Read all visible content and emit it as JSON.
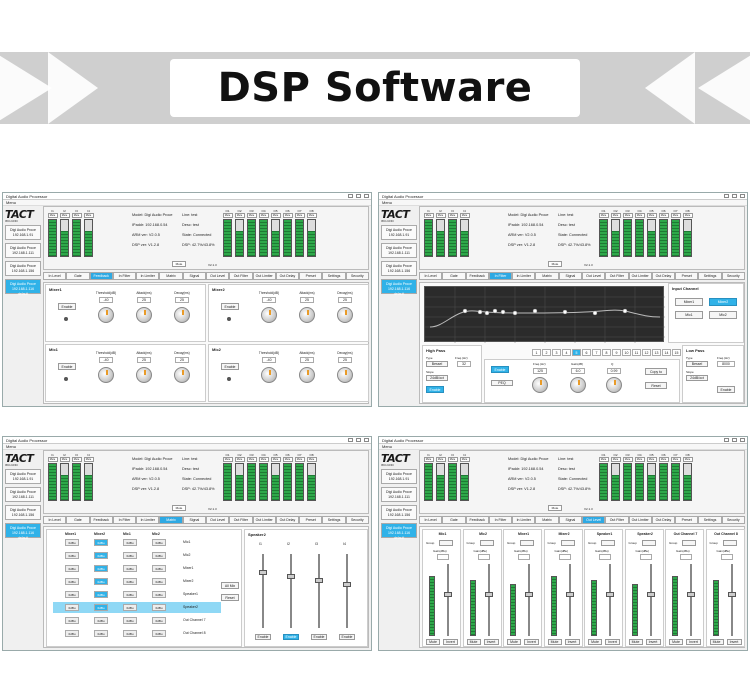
{
  "banner": {
    "title": "DSP Software"
  },
  "colors": {
    "accent": "#30b2e8",
    "meter_green": "#2ea84a",
    "banner_bg": "#cfcfcf"
  },
  "window": {
    "title": "Digital Audio Processor",
    "menu": "Menu",
    "logo": "TACT",
    "logo_sub": "PRO AUDIO",
    "devices": [
      {
        "name": "Digi Audio Proce",
        "ip": "192.168.1.91"
      },
      {
        "name": "Digi Audio Proce",
        "ip": "192.168.1.111"
      },
      {
        "name": "Digi Audio Proce",
        "ip": "192.168.1.156"
      },
      {
        "name": "Digi Audio Proce",
        "ip": "192.168.1.116",
        "extra": "default"
      }
    ],
    "inputs": [
      "I1",
      "I2",
      "I3",
      "I4"
    ],
    "outputs": [
      "O1",
      "O2",
      "O3",
      "O4",
      "O5",
      "O6",
      "O7",
      "O8"
    ],
    "mute_label": "Mute",
    "info": {
      "model": "Model: Digi Audio Proce",
      "ip": "IPaddr: 192.168.0.54",
      "arm": "ARM ver: V2.0.5",
      "dsp": "DSP ver: V1.2.8",
      "line": "Line: test",
      "desc": "Desc: test",
      "state": "State: Connected",
      "dsp_usage": "DSP: 42.7%/43.8%",
      "version": "V2.1.3"
    },
    "tabs": [
      "In Level",
      "Gate",
      "Feedback",
      "In Filter",
      "In Limiter",
      "Matrix",
      "Signal",
      "Out Level",
      "Out Filter",
      "Out Limiter",
      "Out Delay",
      "Preset",
      "Settings",
      "Security"
    ]
  },
  "screen_tl": {
    "active_tab": "Feedback",
    "panels": [
      {
        "name": "Mixer1",
        "enable": "Enable",
        "knobs": [
          {
            "label": "Threshold(dB)",
            "value": "-40"
          },
          {
            "label": "Attack(ms)",
            "value": "25"
          },
          {
            "label": "Decay(ms)",
            "value": "25"
          }
        ]
      },
      {
        "name": "Mixer2",
        "enable": "Enable",
        "knobs": [
          {
            "label": "Threshold(dB)",
            "value": "-40"
          },
          {
            "label": "Attack(ms)",
            "value": "25"
          },
          {
            "label": "Decay(ms)",
            "value": "25"
          }
        ]
      },
      {
        "name": "Mic1",
        "enable": "Enable",
        "knobs": [
          {
            "label": "Threshold(dB)",
            "value": "-40"
          },
          {
            "label": "Attack(ms)",
            "value": "25"
          },
          {
            "label": "Decay(ms)",
            "value": "25"
          }
        ]
      },
      {
        "name": "Mic2",
        "enable": "Enable",
        "knobs": [
          {
            "label": "Threshold(dB)",
            "value": "-40"
          },
          {
            "label": "Attack(ms)",
            "value": "25"
          },
          {
            "label": "Decay(ms)",
            "value": "25"
          }
        ]
      }
    ]
  },
  "screen_tr": {
    "active_tab": "In Filter",
    "input_channel": "Input Channel",
    "channels": [
      "Mixer1",
      "Mixer2",
      "Mic1",
      "Mic2"
    ],
    "high_pass": {
      "title": "High Pass",
      "type": "Type",
      "type_val": "Bessel",
      "slope": "Slope",
      "slope_val": "24dB/oct",
      "freq_label": "Freq.(Hz)",
      "freq": "32",
      "enable": "Enable"
    },
    "low_pass": {
      "title": "Low Pass",
      "type": "Type",
      "type_val": "Bessel",
      "slope": "Slope",
      "slope_val": "24dB/oct",
      "freq_label": "Freq.(Hz)",
      "freq": "8000",
      "enable": "Enable"
    },
    "bands": [
      "1",
      "2",
      "3",
      "4",
      "5",
      "6",
      "7",
      "8",
      "9",
      "10",
      "11",
      "12",
      "13",
      "14",
      "15",
      "16"
    ],
    "active_band": "5",
    "peq": {
      "label": "PEQ",
      "enable": "Enable",
      "freq_label": "Freq.(Hz)",
      "freq": "125",
      "gain_label": "Gain(dB)",
      "gain": "6.0",
      "q_label": "Q",
      "q": "0.99",
      "copy": "Copy to",
      "reset": "Reset"
    }
  },
  "screen_bl": {
    "active_tab": "Matrix",
    "sources": [
      "Mixer1",
      "Mixer2",
      "Mic1",
      "Mic2"
    ],
    "dests": [
      "Mic1",
      "Mic2",
      "Mixer1",
      "Mixer2",
      "Speaker1",
      "Speaker2",
      "Out Channel 7",
      "Out Channel 8"
    ],
    "cell_label": "0dBu",
    "all_mix": "All Mix",
    "reset": "Reset",
    "speaker": "Speaker2",
    "speaker_ch": [
      "I1",
      "I2",
      "I3",
      "I4"
    ],
    "enable": "Enable"
  },
  "screen_br": {
    "active_tab": "Out Level",
    "channels": [
      "Mic1",
      "Mic2",
      "Mixer1",
      "Mixer2",
      "Speaker1",
      "Speaker2",
      "Out Channel 7",
      "Out Channel 8"
    ],
    "group": "Group",
    "gain": "Gain(dBu)",
    "mute": "Mute",
    "invert": "Invert"
  }
}
